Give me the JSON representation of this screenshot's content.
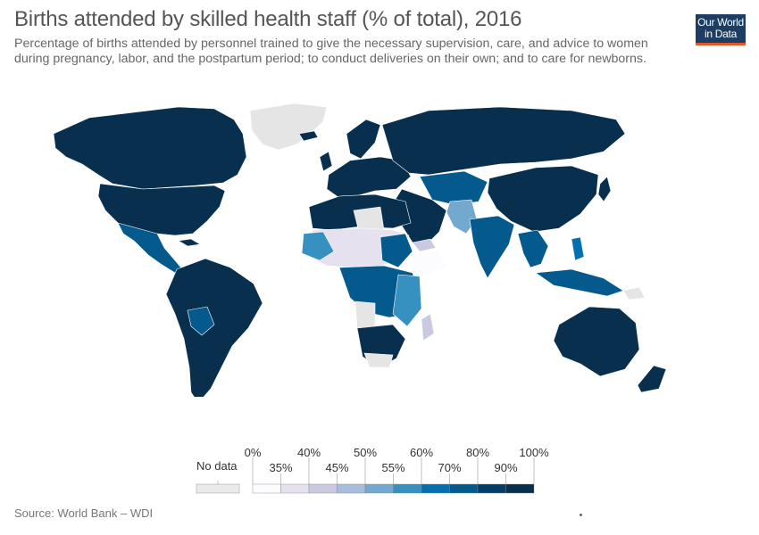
{
  "header": {
    "title": "Births attended by skilled health staff (% of total), 2016",
    "subtitle": "Percentage of births attended by personnel trained to give the necessary supervision, care, and advice to women during pregnancy, labor, and the postpartum period; to conduct deliveries on their own; and to care for newborns."
  },
  "logo": {
    "line1": "Our World",
    "line2": "in Data",
    "bg": "#1d3d63",
    "accent": "#e4572e"
  },
  "legend": {
    "no_data_label": "No data",
    "no_data_color": "#eaeaea",
    "upper_ticks": [
      "0%",
      "40%",
      "50%",
      "60%",
      "80%",
      "100%"
    ],
    "lower_ticks": [
      "35%",
      "45%",
      "55%",
      "70%",
      "90%"
    ],
    "colors": [
      "#fcfbfd",
      "#e6e1ef",
      "#c9c9e2",
      "#a6bddb",
      "#74a9cf",
      "#3690c0",
      "#0570b0",
      "#045a8d",
      "#033e6b",
      "#08304e"
    ]
  },
  "source": "Source: World Bank – WDI"
}
